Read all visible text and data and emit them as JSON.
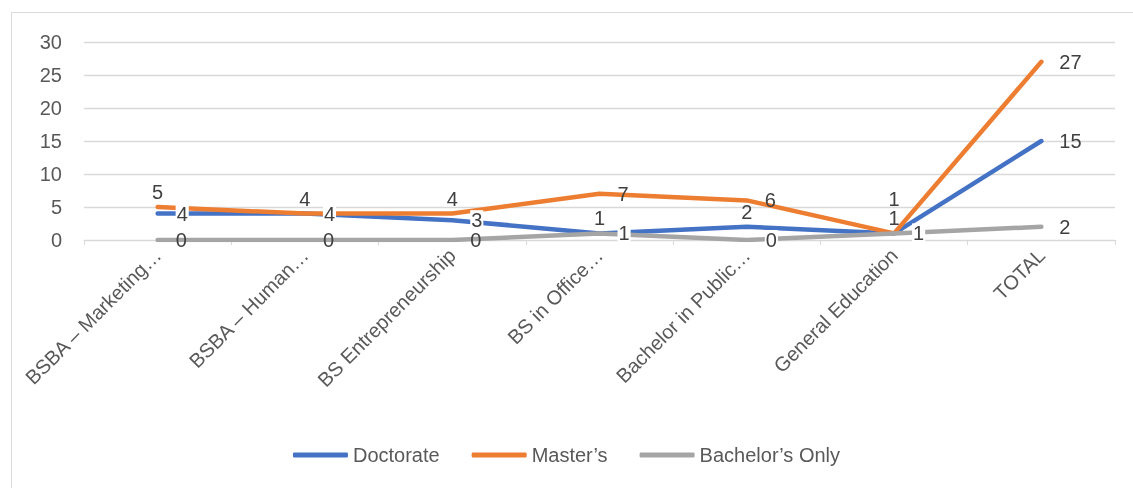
{
  "chart_data": {
    "type": "line",
    "categories": [
      "BSBA – Marketing…",
      "BSBA – Human…",
      "BS Entrepreneurship",
      "BS in Office…",
      "Bachelor in Public…",
      "General Education",
      "TOTAL"
    ],
    "series": [
      {
        "name": "Doctorate",
        "color": "#4472c4",
        "values": [
          4,
          4,
          3,
          1,
          2,
          1,
          15
        ]
      },
      {
        "name": "Master’s",
        "color": "#ed7d31",
        "values": [
          5,
          4,
          4,
          7,
          6,
          1,
          27
        ]
      },
      {
        "name": "Bachelor’s Only",
        "color": "#a5a5a5",
        "values": [
          0,
          0,
          0,
          1,
          0,
          1,
          2
        ]
      }
    ],
    "ylim": [
      0,
      30
    ],
    "yticks": [
      0,
      5,
      10,
      15,
      20,
      25,
      30
    ],
    "grid": "y",
    "legend": "bottom",
    "data_labels": true
  }
}
